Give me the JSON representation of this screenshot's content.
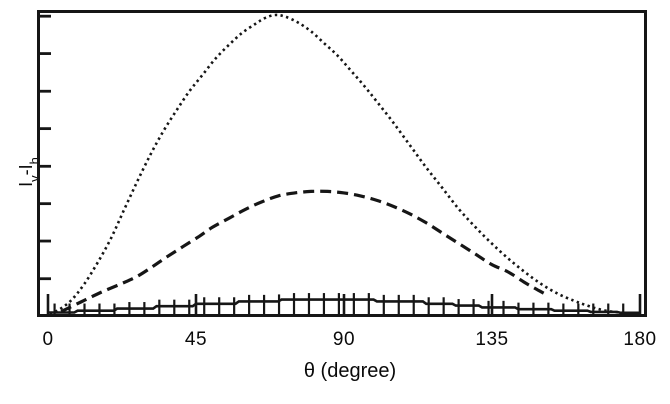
{
  "figure": {
    "background": "#ffffff",
    "line_color": "#161616",
    "text_color": "#0a0a0a"
  },
  "chart_data": {
    "type": "line",
    "title": "",
    "subtitle": "",
    "legend": null,
    "grid": false,
    "x_axis": {
      "label": "θ (degree)",
      "range": [
        0,
        180
      ],
      "ticks": [
        0,
        45,
        90,
        135,
        180
      ],
      "tick_labels": [
        "0",
        "45",
        "90",
        "135",
        "180"
      ]
    },
    "y_axis": {
      "label": "Iv-Ih",
      "label_parts": [
        "I",
        "v",
        "-I",
        "h"
      ],
      "range": [
        0,
        1
      ],
      "units": "arbitrary (unlabeled)",
      "ticks_normalized": [
        0.118,
        0.244,
        0.369,
        0.494,
        0.62,
        0.745,
        0.871,
        0.996
      ],
      "tick_labels": []
    },
    "series": [
      {
        "name": "dotted curve (largest amplitude, peak near 69 deg)",
        "style": "dotted",
        "points": [
          [
            0.5,
            0.003
          ],
          [
            3,
            0.012
          ],
          [
            7,
            0.045
          ],
          [
            11,
            0.1
          ],
          [
            15,
            0.17
          ],
          [
            19,
            0.25
          ],
          [
            23,
            0.345
          ],
          [
            27,
            0.44
          ],
          [
            31,
            0.53
          ],
          [
            35,
            0.61
          ],
          [
            39,
            0.68
          ],
          [
            43,
            0.745
          ],
          [
            47,
            0.8
          ],
          [
            51,
            0.855
          ],
          [
            55,
            0.9
          ],
          [
            59,
            0.94
          ],
          [
            63,
            0.97
          ],
          [
            66,
            0.99
          ],
          [
            69,
            1.0
          ],
          [
            72,
            0.995
          ],
          [
            76,
            0.975
          ],
          [
            80,
            0.945
          ],
          [
            84,
            0.905
          ],
          [
            88,
            0.865
          ],
          [
            92,
            0.815
          ],
          [
            96,
            0.765
          ],
          [
            100,
            0.71
          ],
          [
            105,
            0.64
          ],
          [
            110,
            0.565
          ],
          [
            115,
            0.49
          ],
          [
            120,
            0.42
          ],
          [
            125,
            0.35
          ],
          [
            130,
            0.29
          ],
          [
            135,
            0.235
          ],
          [
            140,
            0.185
          ],
          [
            145,
            0.14
          ],
          [
            150,
            0.1
          ],
          [
            155,
            0.068
          ],
          [
            160,
            0.044
          ],
          [
            164,
            0.028
          ],
          [
            168,
            0.015
          ],
          [
            172,
            0.007
          ],
          [
            176,
            0.003
          ]
        ]
      },
      {
        "name": "dashed curve (medium amplitude, flat peak near 80 deg)",
        "style": "dashed",
        "points": [
          [
            4,
            0.008
          ],
          [
            10,
            0.04
          ],
          [
            16,
            0.072
          ],
          [
            22,
            0.1
          ],
          [
            27,
            0.125
          ],
          [
            32,
            0.16
          ],
          [
            36,
            0.19
          ],
          [
            41,
            0.225
          ],
          [
            46,
            0.26
          ],
          [
            50,
            0.29
          ],
          [
            55,
            0.32
          ],
          [
            60,
            0.35
          ],
          [
            65,
            0.375
          ],
          [
            70,
            0.395
          ],
          [
            75,
            0.405
          ],
          [
            80,
            0.41
          ],
          [
            85,
            0.41
          ],
          [
            90,
            0.405
          ],
          [
            95,
            0.395
          ],
          [
            100,
            0.38
          ],
          [
            105,
            0.36
          ],
          [
            110,
            0.335
          ],
          [
            115,
            0.305
          ],
          [
            120,
            0.27
          ],
          [
            125,
            0.235
          ],
          [
            130,
            0.2
          ],
          [
            135,
            0.165
          ],
          [
            140,
            0.14
          ],
          [
            145,
            0.105
          ],
          [
            149,
            0.08
          ],
          [
            152,
            0.062
          ]
        ]
      },
      {
        "name": "solid stepped curve with error bars (small amplitude)",
        "style": "solid",
        "points": [
          [
            0,
            0.005
          ],
          [
            8,
            0.005
          ],
          [
            9,
            0.011
          ],
          [
            20,
            0.011
          ],
          [
            21,
            0.018
          ],
          [
            32,
            0.018
          ],
          [
            33,
            0.026
          ],
          [
            44,
            0.026
          ],
          [
            45,
            0.034
          ],
          [
            57,
            0.034
          ],
          [
            58,
            0.042
          ],
          [
            70,
            0.042
          ],
          [
            71,
            0.048
          ],
          [
            99,
            0.048
          ],
          [
            100,
            0.042
          ],
          [
            114,
            0.042
          ],
          [
            115,
            0.034
          ],
          [
            123,
            0.034
          ],
          [
            124,
            0.028
          ],
          [
            131,
            0.028
          ],
          [
            132,
            0.022
          ],
          [
            142,
            0.022
          ],
          [
            143,
            0.016
          ],
          [
            153,
            0.016
          ],
          [
            154,
            0.011
          ],
          [
            164,
            0.011
          ],
          [
            165,
            0.007
          ],
          [
            173,
            0.007
          ],
          [
            174,
            0.004
          ],
          [
            180,
            0.004
          ]
        ],
        "error_bars": {
          "theta_start": 2,
          "theta_step": 4.55,
          "theta_end": 175,
          "bottom": 0,
          "top_offset": 0.022,
          "top_min": 0.035
        }
      }
    ]
  }
}
